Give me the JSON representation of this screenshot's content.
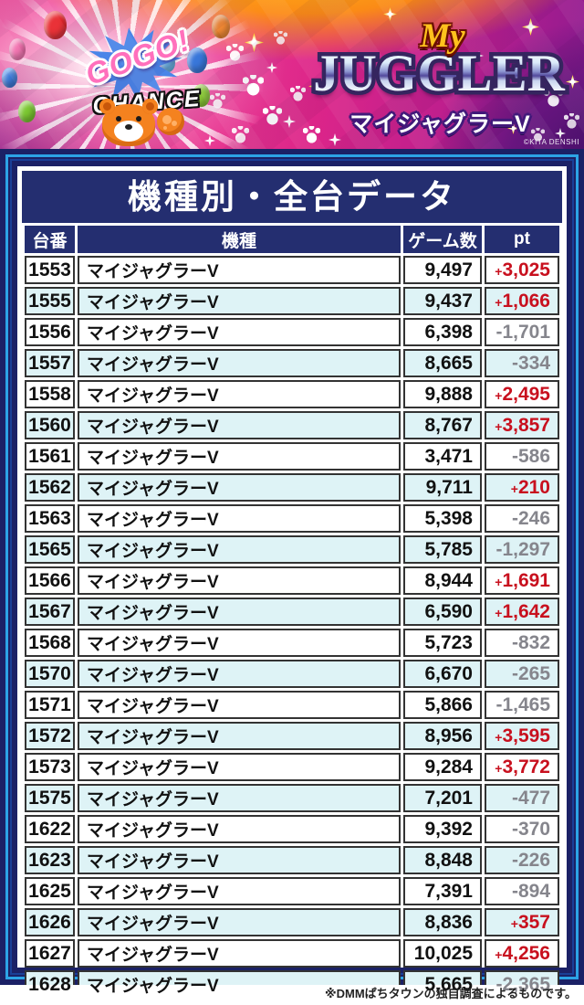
{
  "banner": {
    "gogo": "GOGO!",
    "chance": "CHANCE",
    "my": "My",
    "juggler": "JUGGLER",
    "juggler_jp": "マイジャグラーV",
    "copyright": "©KITA DENSHI"
  },
  "page": {
    "title": "機種別・全台データ",
    "footnote": "※DMMぱちタウンの独自調査によるものです。"
  },
  "table": {
    "headers": [
      "台番",
      "機種",
      "ゲーム数",
      "pt"
    ],
    "rows": [
      {
        "dai": "1553",
        "kishu": "マイジャグラーV",
        "games": "9,497",
        "pt": "+3,025"
      },
      {
        "dai": "1555",
        "kishu": "マイジャグラーV",
        "games": "9,437",
        "pt": "+1,066"
      },
      {
        "dai": "1556",
        "kishu": "マイジャグラーV",
        "games": "6,398",
        "pt": "-1,701"
      },
      {
        "dai": "1557",
        "kishu": "マイジャグラーV",
        "games": "8,665",
        "pt": "-334"
      },
      {
        "dai": "1558",
        "kishu": "マイジャグラーV",
        "games": "9,888",
        "pt": "+2,495"
      },
      {
        "dai": "1560",
        "kishu": "マイジャグラーV",
        "games": "8,767",
        "pt": "+3,857"
      },
      {
        "dai": "1561",
        "kishu": "マイジャグラーV",
        "games": "3,471",
        "pt": "-586"
      },
      {
        "dai": "1562",
        "kishu": "マイジャグラーV",
        "games": "9,711",
        "pt": "+210"
      },
      {
        "dai": "1563",
        "kishu": "マイジャグラーV",
        "games": "5,398",
        "pt": "-246"
      },
      {
        "dai": "1565",
        "kishu": "マイジャグラーV",
        "games": "5,785",
        "pt": "-1,297"
      },
      {
        "dai": "1566",
        "kishu": "マイジャグラーV",
        "games": "8,944",
        "pt": "+1,691"
      },
      {
        "dai": "1567",
        "kishu": "マイジャグラーV",
        "games": "6,590",
        "pt": "+1,642"
      },
      {
        "dai": "1568",
        "kishu": "マイジャグラーV",
        "games": "5,723",
        "pt": "-832"
      },
      {
        "dai": "1570",
        "kishu": "マイジャグラーV",
        "games": "6,670",
        "pt": "-265"
      },
      {
        "dai": "1571",
        "kishu": "マイジャグラーV",
        "games": "5,866",
        "pt": "-1,465"
      },
      {
        "dai": "1572",
        "kishu": "マイジャグラーV",
        "games": "8,956",
        "pt": "+3,595"
      },
      {
        "dai": "1573",
        "kishu": "マイジャグラーV",
        "games": "9,284",
        "pt": "+3,772"
      },
      {
        "dai": "1575",
        "kishu": "マイジャグラーV",
        "games": "7,201",
        "pt": "-477"
      },
      {
        "dai": "1622",
        "kishu": "マイジャグラーV",
        "games": "9,392",
        "pt": "-370"
      },
      {
        "dai": "1623",
        "kishu": "マイジャグラーV",
        "games": "8,848",
        "pt": "-226"
      },
      {
        "dai": "1625",
        "kishu": "マイジャグラーV",
        "games": "7,391",
        "pt": "-894"
      },
      {
        "dai": "1626",
        "kishu": "マイジャグラーV",
        "games": "8,836",
        "pt": "+357"
      },
      {
        "dai": "1627",
        "kishu": "マイジャグラーV",
        "games": "10,025",
        "pt": "+4,256"
      },
      {
        "dai": "1628",
        "kishu": "マイジャグラーV",
        "games": "5,665",
        "pt": "-2,365"
      }
    ]
  },
  "colors": {
    "frame_navy": "#1b2166",
    "frame_blue": "#2ca3e6",
    "header_navy": "#242e70",
    "row_alt_cyan": "#def3f6",
    "plus_red": "#c8101e",
    "minus_gray": "#85858c"
  }
}
